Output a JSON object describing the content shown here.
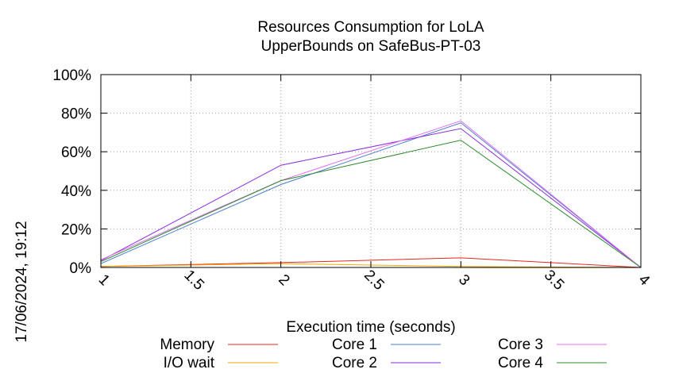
{
  "chart_data": {
    "type": "line",
    "title_lines": [
      "Resources Consumption for LoLA",
      "UpperBounds on SafeBus-PT-03"
    ],
    "xlabel": "Execution time (seconds)",
    "ylabel": "",
    "side_label": "17/06/2024, 19:12",
    "xlim": [
      1,
      4
    ],
    "ylim": [
      0,
      100
    ],
    "x_ticks": [
      1,
      1.5,
      2,
      2.5,
      3,
      3.5,
      4
    ],
    "x_tick_labels": [
      "1",
      "1.5",
      "2",
      "2.5",
      "3",
      "3.5",
      "4"
    ],
    "y_ticks": [
      0,
      20,
      40,
      60,
      80,
      100
    ],
    "y_tick_labels": [
      "0%",
      "20%",
      "40%",
      "60%",
      "80%",
      "100%"
    ],
    "grid": true,
    "legend_position": "bottom",
    "x": [
      1,
      2,
      3,
      4
    ],
    "series": [
      {
        "name": "Memory",
        "color": "#e8261c",
        "values": [
          0.5,
          2.5,
          5,
          0
        ]
      },
      {
        "name": "I/O wait",
        "color": "#f2a900",
        "values": [
          0.5,
          2,
          0.5,
          0
        ]
      },
      {
        "name": "Core 1",
        "color": "#4a7ccc",
        "values": [
          2,
          43,
          75,
          0
        ]
      },
      {
        "name": "Core 2",
        "color": "#8a2be2",
        "values": [
          3.5,
          53,
          72,
          0
        ]
      },
      {
        "name": "Core 3",
        "color": "#e070f0",
        "values": [
          4,
          45,
          76,
          0
        ]
      },
      {
        "name": "Core 4",
        "color": "#2e8b2e",
        "values": [
          3,
          45,
          66,
          0
        ]
      }
    ]
  }
}
